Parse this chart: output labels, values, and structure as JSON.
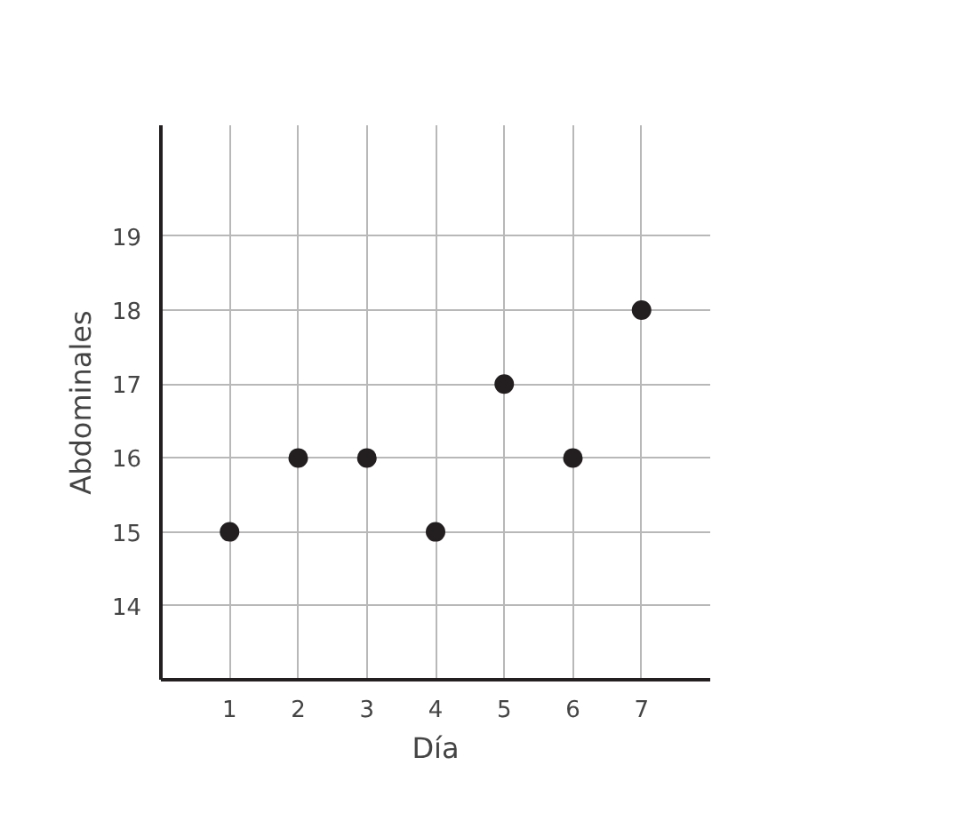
{
  "chart_data": {
    "type": "scatter",
    "xlabel": "Día",
    "ylabel": "Abdominales",
    "x": [
      1,
      2,
      3,
      4,
      5,
      6,
      7
    ],
    "series": [
      {
        "color": "#231f20",
        "values": [
          15,
          16,
          16,
          15,
          17,
          16,
          18
        ]
      }
    ],
    "xlim": [
      0,
      8
    ],
    "ylim": [
      13,
      20.5
    ],
    "xticks": [
      1,
      2,
      3,
      4,
      5,
      6,
      7
    ],
    "yticks": [
      14,
      15,
      16,
      17,
      18,
      19
    ],
    "grid": true,
    "marker": "circle"
  }
}
